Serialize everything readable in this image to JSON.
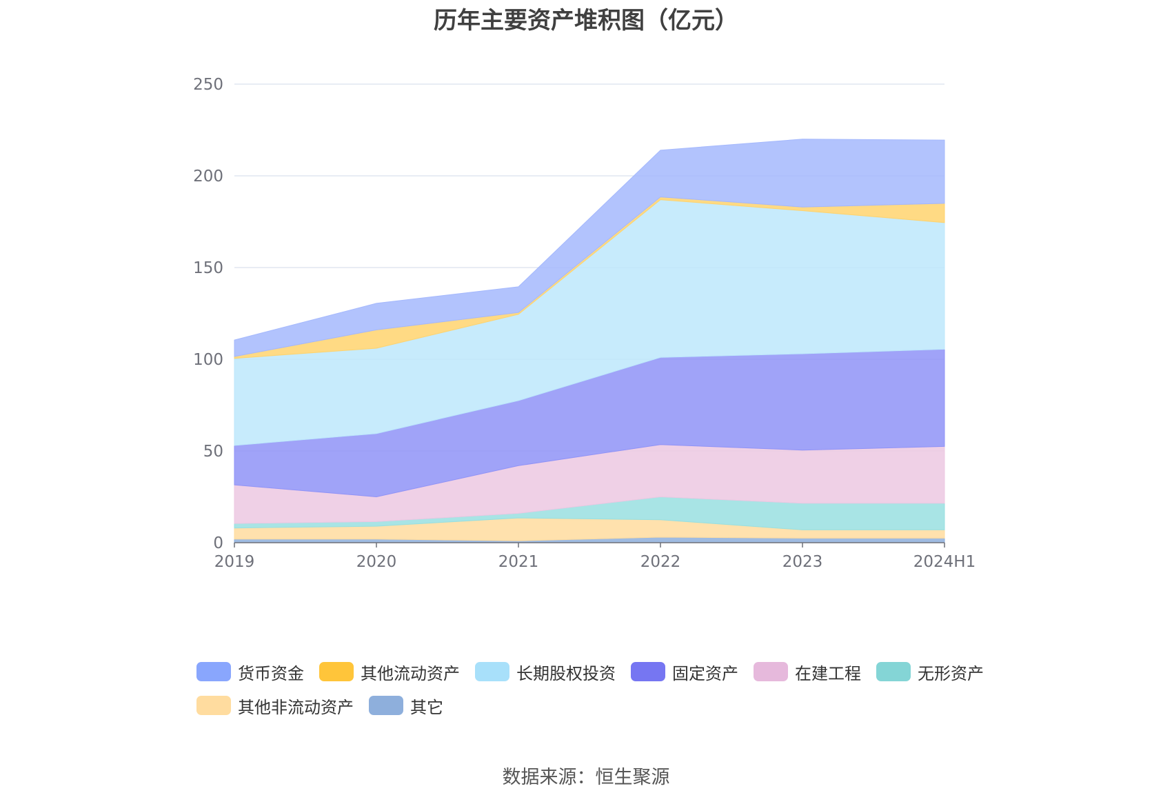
{
  "chart_data": {
    "type": "area",
    "stacked": true,
    "title": "历年主要资产堆积图（亿元）",
    "xlabel": "",
    "ylabel": "",
    "x": [
      "2019",
      "2020",
      "2021",
      "2022",
      "2023",
      "2024H1"
    ],
    "ylim": [
      0,
      250
    ],
    "yticks": [
      0,
      50,
      100,
      150,
      200,
      250
    ],
    "grid": true,
    "legend_position": "bottom",
    "series": [
      {
        "name": "其它",
        "color": "#8eafdc",
        "values": [
          2,
          2,
          1,
          3,
          2.5,
          2.5
        ]
      },
      {
        "name": "其他非流动资产",
        "color": "#ffdc9f",
        "values": [
          6,
          7,
          12.5,
          9.5,
          4.5,
          4.5
        ]
      },
      {
        "name": "无形资产",
        "color": "#99dfe0",
        "values": [
          2.5,
          2.5,
          2.5,
          12.5,
          14.5,
          14.5
        ]
      },
      {
        "name": "在建工程",
        "color": "#ecc8e2",
        "values": [
          21,
          13.5,
          26,
          28.5,
          29,
          31
        ]
      },
      {
        "name": "固定资产",
        "color": "#8f93f7",
        "values": [
          21.5,
          34.5,
          35.5,
          47.5,
          52.5,
          53
        ]
      },
      {
        "name": "长期股权投资",
        "color": "#bde7fb",
        "values": [
          47.5,
          46.5,
          47,
          86,
          78,
          69
        ]
      },
      {
        "name": "其他流动资产",
        "color": "#ffd36e",
        "values": [
          1,
          10,
          1,
          1.5,
          2,
          10.5
        ]
      },
      {
        "name": "货币资金",
        "color": "#a4b8fd",
        "values": [
          9,
          14.5,
          14,
          25.5,
          37,
          34.5
        ]
      }
    ]
  },
  "legend": {
    "items": [
      {
        "label": "货币资金",
        "color": "#89a6fd"
      },
      {
        "label": "其他流动资产",
        "color": "#ffc53a"
      },
      {
        "label": "长期股权投资",
        "color": "#a8e0fa"
      },
      {
        "label": "固定资产",
        "color": "#7676f2"
      },
      {
        "label": "在建工程",
        "color": "#e6b9dc"
      },
      {
        "label": "无形资产",
        "color": "#84d5d6"
      },
      {
        "label": "其他非流动资产",
        "color": "#ffdc9f"
      },
      {
        "label": "其它",
        "color": "#8eafdc"
      }
    ]
  },
  "footer": {
    "source": "数据来源：恒生聚源"
  }
}
